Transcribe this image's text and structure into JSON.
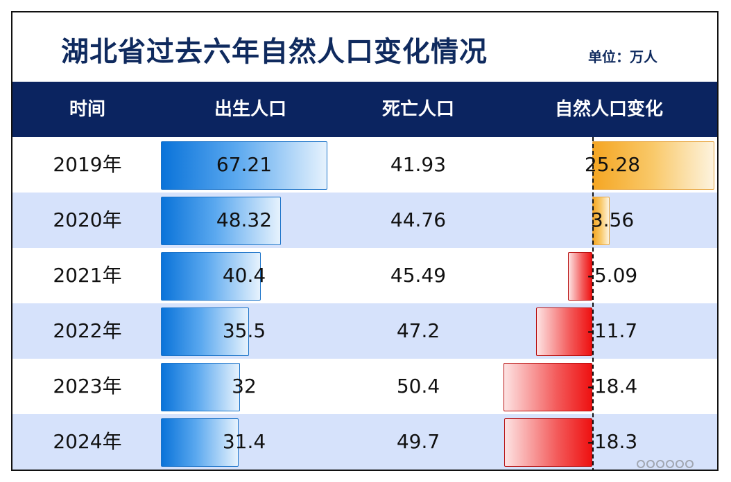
{
  "title": "湖北省过去六年自然人口变化情况",
  "unit_label": "单位：万人",
  "headers": [
    "时间",
    "出生人口",
    "死亡人口",
    "自然人口变化"
  ],
  "colors": {
    "header_bg": "#0b2460",
    "title": "#0f2a5e",
    "birth_bar": "#0a73d9",
    "positive_bar": "#f5a623",
    "negative_bar": "#ee1111",
    "alt_row": "#d6e2fb"
  },
  "chart_data": {
    "type": "table",
    "title": "湖北省过去六年自然人口变化情况",
    "categories": [
      "2019年",
      "2020年",
      "2021年",
      "2022年",
      "2023年",
      "2024年"
    ],
    "series": [
      {
        "name": "出生人口",
        "values": [
          67.21,
          48.32,
          40.4,
          35.5,
          32,
          31.4
        ],
        "labels": [
          "67.21",
          "48.32",
          "40.4",
          "35.5",
          "32",
          "31.4"
        ]
      },
      {
        "name": "死亡人口",
        "values": [
          41.93,
          44.76,
          45.49,
          47.2,
          50.4,
          49.7
        ],
        "labels": [
          "41.93",
          "44.76",
          "45.49",
          "47.2",
          "50.4",
          "49.7"
        ]
      },
      {
        "name": "自然人口变化",
        "values": [
          25.28,
          3.56,
          -5.09,
          -11.7,
          -18.4,
          -18.3
        ],
        "labels": [
          "25.28",
          "3.56",
          "-5.09",
          "-11.7",
          "-18.4",
          "-18.3"
        ]
      }
    ]
  }
}
